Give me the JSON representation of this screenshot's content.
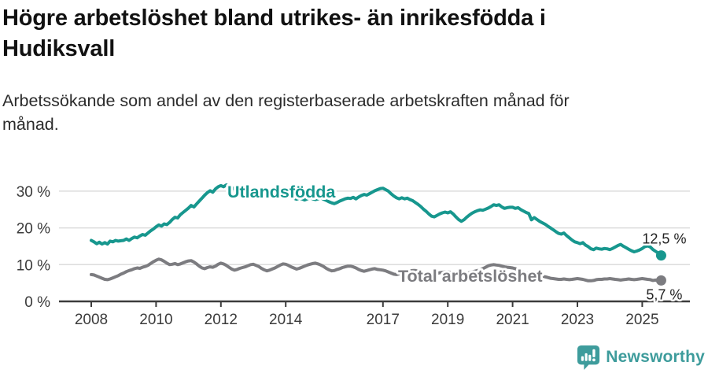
{
  "header": {
    "title_line1": "Högre arbetslöshet bland utrikes- än inrikesfödda i",
    "title_line2": "Hudiksvall",
    "subtitle_line1": "Arbetssökande som andel av den registerbaserade arbetskraften månad för",
    "subtitle_line2": "månad."
  },
  "chart_data": {
    "type": "line",
    "title": "Högre arbetslöshet bland utrikes- än inrikesfödda i Hudiksvall",
    "subtitle": "Arbetssökande som andel av den registerbaserade arbetskraften månad för månad.",
    "unit": "%",
    "grid": "horizontal",
    "legend_position": "inline-on-lines",
    "x_start_year": 2008,
    "points_per_year": 12,
    "ylim": [
      0,
      33
    ],
    "y_ticks": [
      {
        "value": 0,
        "label": "0 %"
      },
      {
        "value": 10,
        "label": "10 %"
      },
      {
        "value": 20,
        "label": "20 %"
      },
      {
        "value": 30,
        "label": "30 %"
      }
    ],
    "x_ticks": [
      {
        "year": 2008,
        "label": "2008"
      },
      {
        "year": 2010,
        "label": "2010"
      },
      {
        "year": 2012,
        "label": "2012"
      },
      {
        "year": 2014,
        "label": "2014"
      },
      {
        "year": 2017,
        "label": "2017"
      },
      {
        "year": 2019,
        "label": "2019"
      },
      {
        "year": 2021,
        "label": "2021"
      },
      {
        "year": 2023,
        "label": "2023"
      },
      {
        "year": 2025,
        "label": "2025"
      }
    ],
    "series": [
      {
        "name": "Utlandsfödda",
        "color": "#17978E",
        "end_label": "12,5 %",
        "end_value": 12.5,
        "values": [
          16.6,
          16.2,
          15.7,
          16.1,
          15.6,
          16.0,
          15.6,
          16.4,
          16.2,
          16.6,
          16.4,
          16.5,
          16.6,
          17.0,
          16.6,
          17.1,
          17.5,
          17.3,
          17.8,
          18.2,
          18.0,
          18.6,
          19.2,
          19.7,
          20.3,
          20.8,
          20.5,
          21.1,
          20.9,
          21.5,
          22.3,
          22.9,
          22.7,
          23.6,
          24.2,
          24.8,
          25.4,
          26.1,
          25.7,
          26.5,
          27.3,
          28.1,
          28.9,
          29.6,
          30.1,
          29.7,
          30.6,
          31.2,
          31.5,
          31.2,
          31.7,
          31.4,
          31.0,
          30.6,
          30.2,
          30.5,
          30.1,
          29.9,
          30.2,
          29.9,
          29.8,
          30.0,
          29.6,
          29.2,
          28.9,
          29.2,
          28.9,
          28.6,
          28.9,
          28.7,
          28.4,
          28.7,
          28.5,
          28.8,
          28.4,
          28.1,
          27.8,
          28.1,
          27.9,
          27.6,
          27.9,
          28.2,
          27.9,
          27.7,
          27.9,
          28.2,
          27.8,
          27.5,
          27.1,
          26.8,
          26.6,
          26.9,
          27.3,
          27.6,
          27.9,
          28.1,
          28.0,
          28.3,
          27.9,
          28.4,
          28.8,
          29.1,
          28.9,
          29.3,
          29.7,
          30.1,
          30.4,
          30.7,
          30.8,
          30.4,
          30.0,
          29.3,
          28.7,
          28.2,
          27.9,
          28.2,
          27.9,
          28.1,
          27.7,
          27.4,
          26.9,
          26.4,
          25.8,
          25.1,
          24.5,
          23.8,
          23.2,
          23.0,
          23.4,
          23.8,
          24.1,
          24.3,
          24.1,
          24.4,
          23.8,
          23.0,
          22.3,
          21.8,
          22.2,
          22.9,
          23.5,
          24.0,
          24.4,
          24.7,
          24.9,
          24.8,
          25.1,
          25.4,
          25.8,
          26.3,
          26.1,
          26.3,
          25.7,
          25.3,
          25.5,
          25.6,
          25.6,
          25.3,
          25.5,
          25.0,
          24.6,
          24.2,
          23.9,
          22.2,
          22.8,
          22.3,
          21.8,
          21.4,
          21.0,
          20.5,
          20.0,
          19.5,
          19.0,
          18.5,
          18.3,
          18.6,
          17.9,
          17.3,
          16.7,
          16.2,
          16.0,
          15.7,
          16.0,
          15.3,
          14.9,
          14.3,
          14.1,
          14.5,
          14.3,
          14.2,
          14.4,
          14.3,
          14.1,
          14.4,
          14.8,
          15.2,
          15.5,
          15.0,
          14.6,
          14.2,
          13.8,
          13.5,
          13.7,
          14.0,
          14.4,
          14.9,
          15.1,
          14.8,
          14.1,
          13.6,
          13.1,
          12.5
        ]
      },
      {
        "name": "Total arbetslöshet",
        "color": "#7C7C80",
        "end_label": "5,7 %",
        "end_value": 5.7,
        "values": [
          7.3,
          7.2,
          6.9,
          6.6,
          6.3,
          6.0,
          5.9,
          6.1,
          6.4,
          6.7,
          7.0,
          7.4,
          7.7,
          8.1,
          8.4,
          8.6,
          8.9,
          9.1,
          9.0,
          9.3,
          9.5,
          9.8,
          10.3,
          10.8,
          11.2,
          11.5,
          11.3,
          10.9,
          10.4,
          10.0,
          10.1,
          10.3,
          10.0,
          10.2,
          10.5,
          10.8,
          11.0,
          11.1,
          10.7,
          10.2,
          9.6,
          9.1,
          8.9,
          9.2,
          9.4,
          9.3,
          9.6,
          10.1,
          10.4,
          10.2,
          9.8,
          9.3,
          8.8,
          8.5,
          8.7,
          9.0,
          9.2,
          9.4,
          9.7,
          10.0,
          10.1,
          9.8,
          9.5,
          9.0,
          8.6,
          8.3,
          8.5,
          8.8,
          9.1,
          9.5,
          9.9,
          10.2,
          10.1,
          9.8,
          9.4,
          9.1,
          8.8,
          9.0,
          9.3,
          9.6,
          9.9,
          10.1,
          10.3,
          10.4,
          10.2,
          9.9,
          9.5,
          9.0,
          8.6,
          8.3,
          8.4,
          8.7,
          8.9,
          9.2,
          9.4,
          9.6,
          9.6,
          9.4,
          9.1,
          8.7,
          8.4,
          8.2,
          8.4,
          8.6,
          8.8,
          8.9,
          8.7,
          8.6,
          8.5,
          8.3,
          8.0,
          7.7,
          7.4,
          7.3,
          7.5,
          7.7,
          7.9,
          8.1,
          8.3,
          8.4,
          8.4,
          8.2,
          7.9,
          7.6,
          7.3,
          7.1,
          7.2,
          7.4,
          7.6,
          7.8,
          7.9,
          8.0,
          8.0,
          7.9,
          7.7,
          7.5,
          7.3,
          7.2,
          7.4,
          7.6,
          7.8,
          8.0,
          8.2,
          8.4,
          8.6,
          8.9,
          9.3,
          9.7,
          9.9,
          10.0,
          9.9,
          9.8,
          9.6,
          9.4,
          9.3,
          9.2,
          9.1,
          8.9,
          8.6,
          8.3,
          8.0,
          7.7,
          7.5,
          7.3,
          7.1,
          7.0,
          6.9,
          6.8,
          6.7,
          6.5,
          6.3,
          6.2,
          6.1,
          6.0,
          6.0,
          6.1,
          6.0,
          5.9,
          6.0,
          6.1,
          6.2,
          6.1,
          6.0,
          5.8,
          5.6,
          5.6,
          5.7,
          5.9,
          6.0,
          6.0,
          6.1,
          6.1,
          6.2,
          6.1,
          6.0,
          5.9,
          5.8,
          5.9,
          6.0,
          6.1,
          6.0,
          5.9,
          6.0,
          6.1,
          6.2,
          6.1,
          6.0,
          5.9,
          5.7,
          5.8,
          5.5,
          5.7
        ]
      }
    ]
  },
  "footer": {
    "brand": "Newsworthy",
    "brand_color": "#3E9C9C",
    "logo_icon": "bar-chart-speech-bubble-icon"
  },
  "colors": {
    "utlandsfodda_line": "#17978E",
    "total_line": "#7C7C80",
    "gridline": "#DCDCDC",
    "axis": "#3C3C3C"
  }
}
